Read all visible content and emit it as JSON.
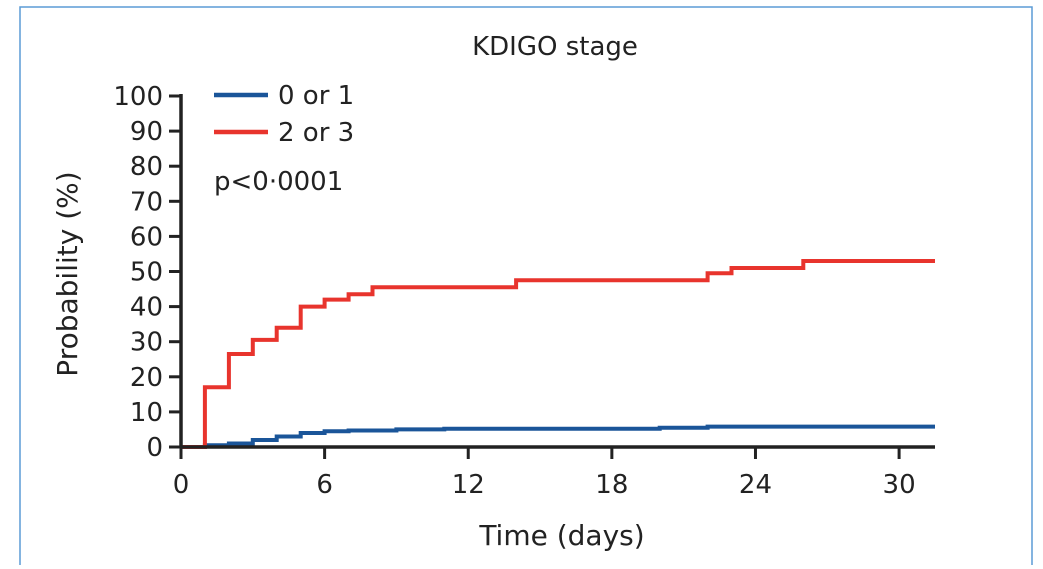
{
  "chart_data": {
    "type": "line",
    "title": "KDIGO stage",
    "xlabel": "Time (days)",
    "ylabel": "Probability (%)",
    "xlim": [
      0,
      31.5
    ],
    "ylim": [
      0,
      100
    ],
    "xticks": [
      0,
      6,
      12,
      18,
      24,
      30
    ],
    "yticks": [
      0,
      10,
      20,
      30,
      40,
      50,
      60,
      70,
      80,
      90,
      100
    ],
    "annotation": "p<0·0001",
    "legend_position": "top-left",
    "series": [
      {
        "name": "0 or 1",
        "color": "#1a5599",
        "step": true,
        "x": [
          0,
          1,
          2,
          3,
          4,
          5,
          6,
          7,
          9,
          11,
          20,
          22,
          31.5
        ],
        "y": [
          0,
          0.5,
          1,
          2,
          3,
          4,
          4.5,
          4.7,
          5,
          5.2,
          5.5,
          5.8,
          5.8
        ]
      },
      {
        "name": "2 or 3",
        "color": "#e8342d",
        "step": true,
        "x": [
          0,
          1,
          2,
          3,
          4,
          5,
          6,
          7,
          8,
          14,
          22,
          23,
          26,
          31.5
        ],
        "y": [
          0,
          17,
          26.5,
          30.5,
          34,
          40,
          42,
          43.5,
          45.5,
          47.5,
          49.5,
          51,
          53,
          53
        ]
      }
    ]
  }
}
